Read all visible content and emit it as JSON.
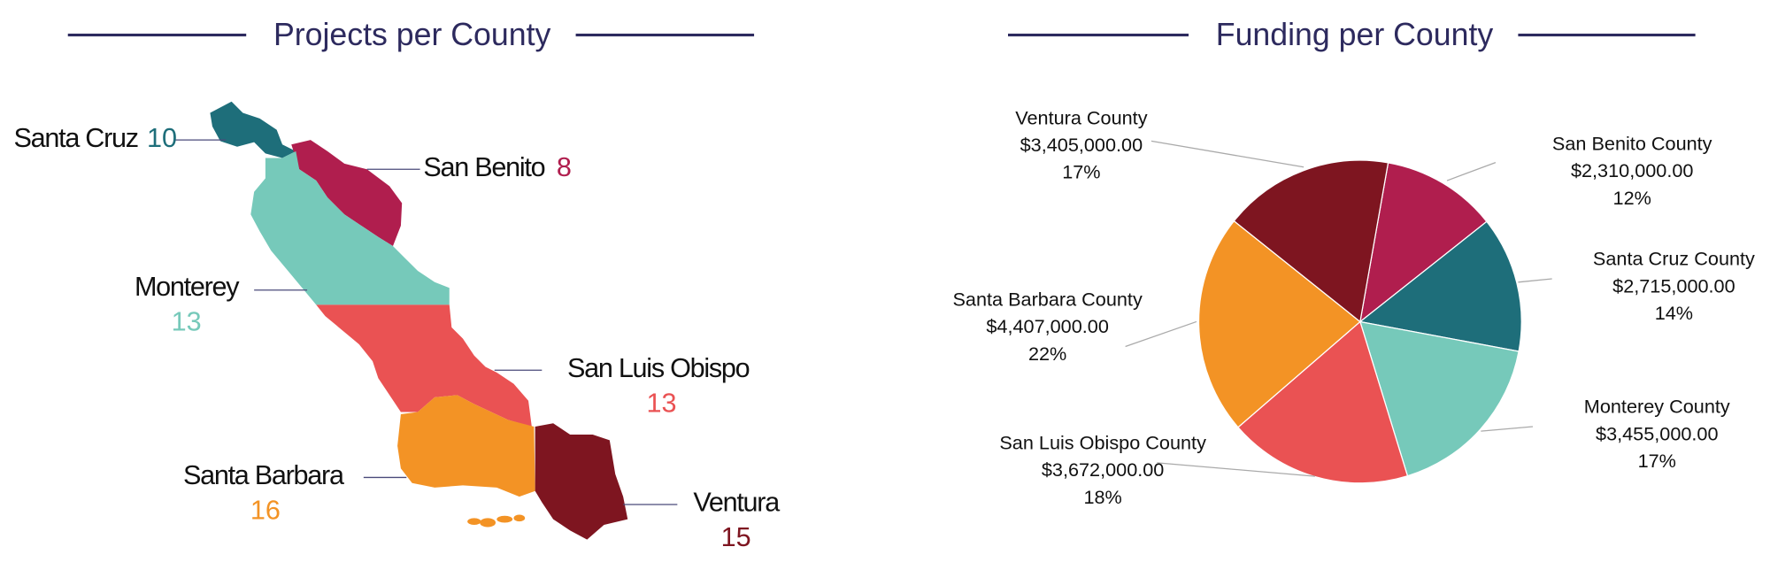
{
  "chart_data": [
    {
      "type": "map",
      "title": "Projects per County",
      "regions": [
        {
          "name": "Santa Cruz",
          "value": 10,
          "color": "#1e6e7a"
        },
        {
          "name": "San Benito",
          "value": 8,
          "color": "#b01e4e"
        },
        {
          "name": "Monterey",
          "value": 13,
          "color": "#76c9ba"
        },
        {
          "name": "San Luis Obispo",
          "value": 13,
          "color": "#ea5253"
        },
        {
          "name": "Santa Barbara",
          "value": 16,
          "color": "#f39325"
        },
        {
          "name": "Ventura",
          "value": 15,
          "color": "#7e1520"
        }
      ]
    },
    {
      "type": "pie",
      "title": "Funding per County",
      "categories": [
        "San Benito County",
        "Santa Cruz County",
        "Monterey County",
        "San Luis Obispo County",
        "Santa Barbara County",
        "Ventura County"
      ],
      "values": [
        2310000,
        2715000,
        3455000,
        3672000,
        4407000,
        3405000
      ],
      "value_labels": [
        "$2,310,000.00",
        "$2,715,000.00",
        "$3,455,000.00",
        "$3,672,000.00",
        "$4,407,000.00",
        "$3,405,000.00"
      ],
      "percent_labels": [
        "12%",
        "14%",
        "17%",
        "18%",
        "22%",
        "17%"
      ],
      "colors": [
        "#b01e4e",
        "#1e6e7a",
        "#76c9ba",
        "#ea5253",
        "#f39325",
        "#7e1520"
      ]
    }
  ]
}
